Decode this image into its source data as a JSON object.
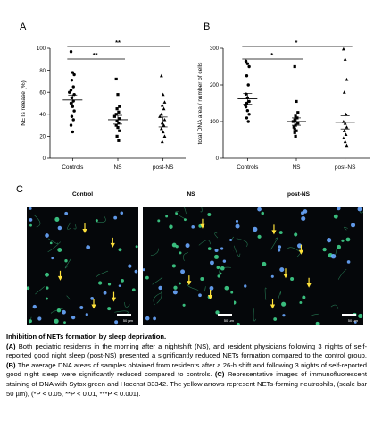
{
  "panels": {
    "a": "A",
    "b": "B",
    "c": "C"
  },
  "chart_data": [
    {
      "type": "scatter",
      "ylabel": "NETs release (%)",
      "ylim": [
        0,
        100
      ],
      "yticks": [
        0,
        20,
        40,
        60,
        80,
        100
      ],
      "categories": [
        "Controls",
        "NS",
        "post-NS"
      ],
      "series": [
        {
          "marker": "circle",
          "values": [
            97,
            78,
            76,
            71,
            65,
            62,
            60,
            58,
            55,
            52,
            50,
            47,
            43,
            38,
            35,
            30,
            24
          ],
          "mean": 53,
          "sem": 4.5
        },
        {
          "marker": "square",
          "values": [
            72,
            58,
            47,
            45,
            42,
            40,
            38,
            36,
            34,
            32,
            30,
            28,
            25,
            20,
            16
          ],
          "mean": 35,
          "sem": 4
        },
        {
          "marker": "triangle",
          "values": [
            75,
            58,
            51,
            48,
            45,
            40,
            38,
            35,
            32,
            30,
            27,
            24,
            20,
            15
          ],
          "mean": 33,
          "sem": 4.5
        }
      ],
      "significance": [
        {
          "from": "Controls",
          "to": "post-NS",
          "label": "**"
        },
        {
          "from": "Controls",
          "to": "NS",
          "label": "**"
        }
      ]
    },
    {
      "type": "scatter",
      "ylabel": "total DNA area / number of cells",
      "ylim": [
        0,
        300
      ],
      "yticks": [
        0,
        100,
        200,
        300
      ],
      "categories": [
        "Controls",
        "NS",
        "post-NS"
      ],
      "series": [
        {
          "marker": "circle",
          "values": [
            265,
            258,
            250,
            225,
            200,
            175,
            165,
            155,
            150,
            145,
            140,
            130,
            120,
            110,
            100
          ],
          "mean": 162,
          "sem": 15
        },
        {
          "marker": "square",
          "values": [
            250,
            155,
            125,
            115,
            110,
            105,
            100,
            95,
            90,
            85,
            80,
            75,
            70,
            60
          ],
          "mean": 100,
          "sem": 10
        },
        {
          "marker": "triangle",
          "values": [
            298,
            270,
            215,
            180,
            120,
            100,
            95,
            85,
            75,
            65,
            55,
            45,
            35
          ],
          "mean": 98,
          "sem": 18
        }
      ],
      "significance": [
        {
          "from": "Controls",
          "to": "post-NS",
          "label": "*"
        },
        {
          "from": "Controls",
          "to": "NS",
          "label": "*"
        }
      ]
    }
  ],
  "images": {
    "titles": [
      "Control",
      "NS",
      "post-NS"
    ],
    "scalebar": "50 µm",
    "colors": {
      "background": "#05070a",
      "sytox": "#3fd08a",
      "hoechst": "#6aa8ff",
      "arrow": "#ffe23a"
    }
  },
  "caption": {
    "title": "Inhibition of NETs formation by sleep deprivation.",
    "a_label": "(A)",
    "a_text": " Both pediatric residents in the morning after a nightshift (NS), and resident physicians following 3 nights of self-reported good night sleep (post-NS) presented a significantly reduced NETs formation compared to the control group. ",
    "b_label": "(B)",
    "b_text": " The average DNA areas of samples obtained from residents after a 26-h shift and following 3 nights of self-reported good night sleep were significantly reduced compared to controls. ",
    "c_label": "(C)",
    "c_text": " Representative images of immunofluorescent staining of DNA with Sytox green and Hoechst 33342. The yellow arrows represent NETs-forming neutrophils, (scale bar 50 µm), (*P < 0.05, **P < 0.01, ***P < 0.001)."
  }
}
